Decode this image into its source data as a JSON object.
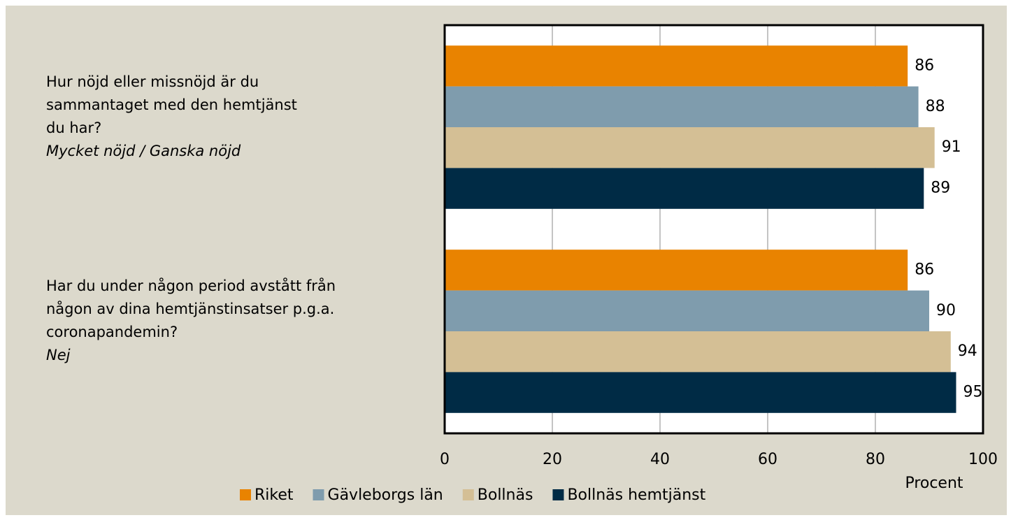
{
  "chart_data": {
    "type": "bar",
    "orientation": "horizontal",
    "categories": [
      "Hur nöjd eller missnöjd är du\nsammantaget med den hemtjänst\ndu har?",
      "Har du under någon period avstått från\nnågon av dina hemtjänstinsatser p.g.a.\ncoronapandemin?"
    ],
    "category_notes": [
      "Mycket nöjd / Ganska nöjd",
      "Nej"
    ],
    "series": [
      {
        "name": "Riket",
        "color": "#e98300",
        "values": [
          86,
          86
        ]
      },
      {
        "name": "Gävleborgs län",
        "color": "#7f9cad",
        "values": [
          88,
          90
        ]
      },
      {
        "name": "Bollnäs",
        "color": "#d4bf95",
        "values": [
          91,
          94
        ]
      },
      {
        "name": "Bollnäs hemtjänst",
        "color": "#002b45",
        "values": [
          89,
          95
        ]
      }
    ],
    "xlim": [
      0,
      100
    ],
    "xticks": [
      0,
      20,
      40,
      60,
      80,
      100
    ],
    "xlabel": "Procent",
    "grid": true
  }
}
